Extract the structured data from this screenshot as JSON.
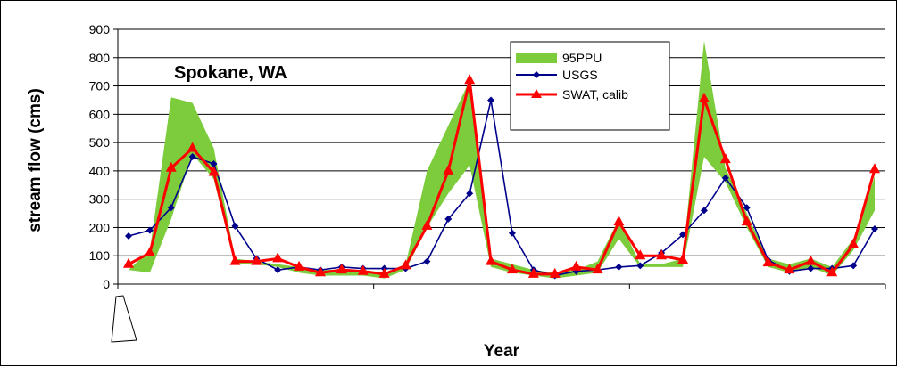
{
  "chart_data": {
    "type": "line",
    "annotation": "Spokane, WA",
    "xlabel": "Year",
    "ylabel": "stream flow (cms)",
    "ylim": [
      0,
      900
    ],
    "yticks": [
      0,
      100,
      200,
      300,
      400,
      500,
      600,
      700,
      800,
      900
    ],
    "grid": true,
    "legend_position": "top-right",
    "n_points": 36,
    "colors": {
      "band": "#7dcc3c",
      "usgs": "#00008b",
      "swat": "#ff0000"
    },
    "band": {
      "name": "95PPU",
      "upper": [
        50,
        120,
        660,
        640,
        480,
        90,
        80,
        70,
        60,
        50,
        50,
        50,
        40,
        70,
        400,
        560,
        720,
        90,
        70,
        50,
        40,
        50,
        80,
        230,
        70,
        70,
        90,
        860,
        410,
        250,
        90,
        70,
        90,
        60,
        160,
        380
      ],
      "lower": [
        50,
        40,
        230,
        460,
        370,
        70,
        70,
        60,
        40,
        30,
        30,
        30,
        20,
        50,
        200,
        320,
        420,
        60,
        40,
        30,
        20,
        30,
        40,
        160,
        60,
        60,
        60,
        450,
        360,
        200,
        60,
        40,
        60,
        30,
        120,
        260
      ]
    },
    "series": [
      {
        "name": "USGS",
        "values": [
          170,
          190,
          270,
          450,
          425,
          205,
          90,
          50,
          60,
          50,
          60,
          55,
          55,
          55,
          80,
          230,
          320,
          650,
          180,
          50,
          30,
          45,
          50,
          60,
          65,
          110,
          175,
          260,
          375,
          270,
          85,
          45,
          55,
          55,
          65,
          195
        ]
      },
      {
        "name": "SWAT, calib",
        "values": [
          70,
          110,
          410,
          480,
          395,
          80,
          80,
          90,
          60,
          40,
          50,
          45,
          35,
          65,
          205,
          400,
          720,
          80,
          50,
          35,
          35,
          60,
          50,
          220,
          100,
          100,
          85,
          655,
          440,
          220,
          75,
          50,
          80,
          40,
          140,
          405
        ]
      }
    ]
  }
}
